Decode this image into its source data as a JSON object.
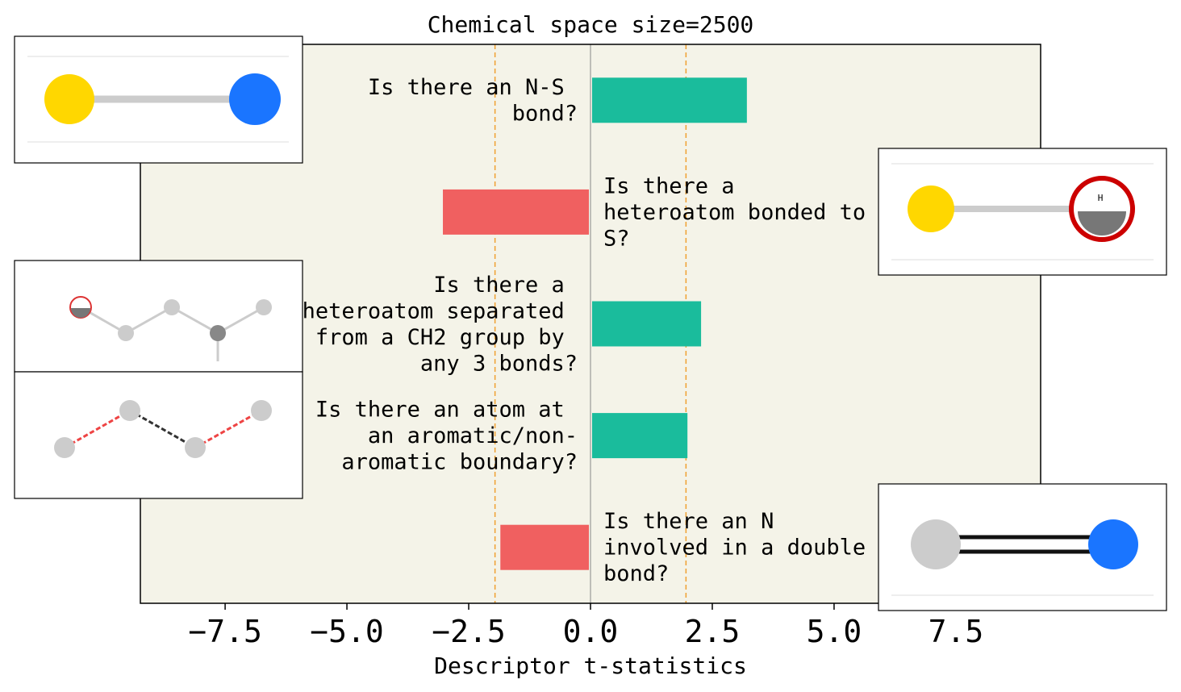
{
  "chart_data": {
    "type": "barh",
    "title": "Chemical space size=2500",
    "xlabel": "Descriptor t-statistics",
    "categories": [
      "Is there an N-S bond?",
      "Is there a heteroatom bonded to S?",
      "Is there a heteroatom separated from a CH2 group by any 3 bonds?",
      "Is there an atom at an aromatic/non-aromatic boundary?",
      "Is there an N involved in a double bond?"
    ],
    "values": [
      3.21,
      -3.03,
      2.27,
      1.99,
      -1.85
    ],
    "colors": [
      "#1abc9c",
      "#f06060",
      "#1abc9c",
      "#1abc9c",
      "#f06060"
    ],
    "xlim": [
      -9.24,
      9.24
    ],
    "xticks": [
      {
        "value": -7.5,
        "label": "−7.5"
      },
      {
        "value": -5,
        "label": "−5.0"
      },
      {
        "value": -2.5,
        "label": "−2.5"
      },
      {
        "value": 0,
        "label": "0.0"
      },
      2.5,
      {
        "value": 5,
        "label": "5.0"
      },
      7.5
    ],
    "threshold_lines": [
      -1.96,
      1.96
    ],
    "threshold_color": "#f0a030",
    "background": "#f4f3e8"
  }
}
